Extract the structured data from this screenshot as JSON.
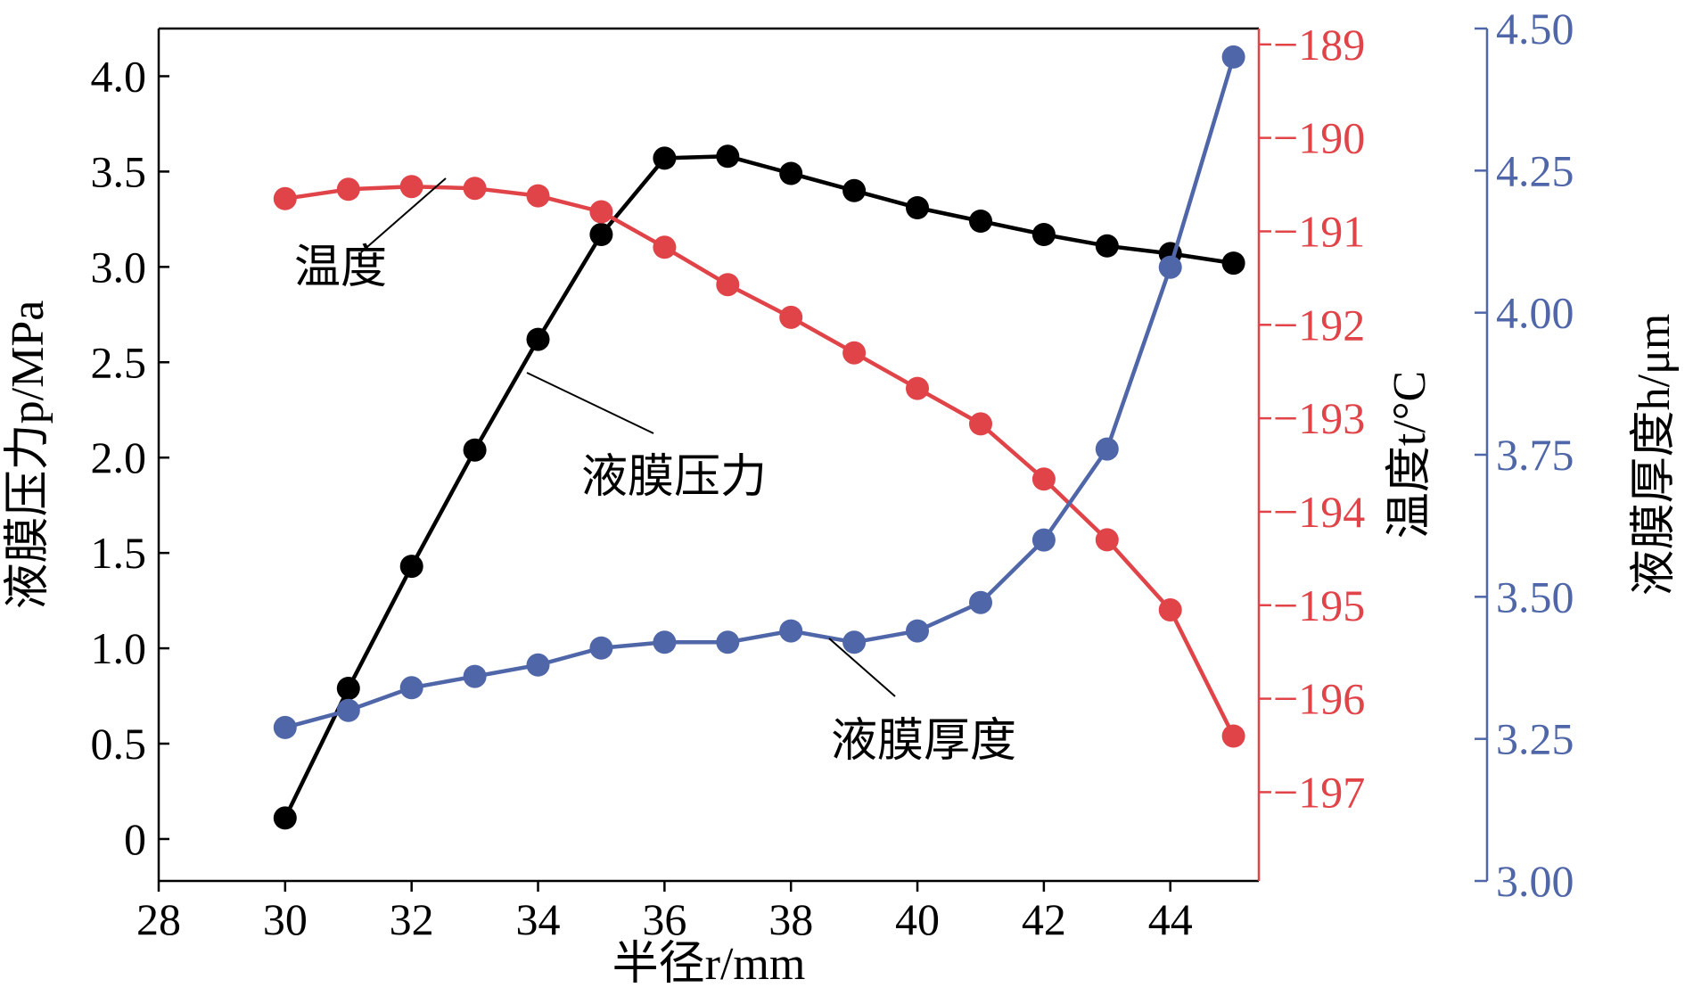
{
  "chart_data": {
    "type": "line",
    "xlabel": "半径r/mm",
    "xlim": [
      28,
      45.4
    ],
    "xticks": [
      "28",
      "30",
      "32",
      "34",
      "36",
      "38",
      "40",
      "42",
      "44"
    ],
    "xtick_values": [
      28,
      30,
      32,
      34,
      36,
      38,
      40,
      42,
      44
    ],
    "x": [
      30,
      31,
      32,
      33,
      34,
      35,
      36,
      37,
      38,
      39,
      40,
      41,
      42,
      43,
      44,
      45
    ],
    "axes": {
      "left": {
        "label": "液膜压力p/MPa",
        "ylim": [
          -0.22,
          4.25
        ],
        "tick_values": [
          0,
          0.5,
          1.0,
          1.5,
          2.0,
          2.5,
          3.0,
          3.5,
          4.0
        ],
        "ticks": [
          "0",
          "0.5",
          "1.0",
          "1.5",
          "2.0",
          "2.5",
          "3.0",
          "3.5",
          "4.0"
        ],
        "color": "#000000"
      },
      "right_temperature": {
        "label": "温度t/°C",
        "ylim": [
          -197.95,
          -188.83
        ],
        "tick_values": [
          -189,
          -190,
          -191,
          -192,
          -193,
          -194,
          -195,
          -196,
          -197
        ],
        "ticks": [
          "−189",
          "−190",
          "−191",
          "−192",
          "−193",
          "−194",
          "−195",
          "−196",
          "−197"
        ],
        "color": "#e04448"
      },
      "right_thickness": {
        "label": "液膜厚度h/μm",
        "ylim": [
          3.0,
          4.5
        ],
        "tick_values": [
          3.0,
          3.25,
          3.5,
          3.75,
          4.0,
          4.25,
          4.5
        ],
        "ticks": [
          "3.00",
          "3.25",
          "3.50",
          "3.75",
          "4.00",
          "4.25",
          "4.50"
        ],
        "color": "#4f66a8"
      }
    },
    "series": [
      {
        "name": "液膜压力",
        "axis": "left",
        "color": "#000000",
        "values": [
          0.11,
          0.79,
          1.43,
          2.04,
          2.62,
          3.17,
          3.57,
          3.58,
          3.49,
          3.4,
          3.31,
          3.24,
          3.17,
          3.11,
          3.07,
          3.02
        ]
      },
      {
        "name": "温度",
        "axis": "right_temperature",
        "color": "#e04448",
        "values": [
          -190.65,
          -190.55,
          -190.52,
          -190.54,
          -190.62,
          -190.79,
          -191.17,
          -191.57,
          -191.92,
          -192.3,
          -192.68,
          -193.06,
          -193.65,
          -194.3,
          -195.05,
          -196.4
        ]
      },
      {
        "name": "液膜厚度",
        "axis": "right_thickness",
        "color": "#4f66a8",
        "values": [
          3.27,
          3.3,
          3.34,
          3.36,
          3.38,
          3.41,
          3.42,
          3.42,
          3.44,
          3.42,
          3.44,
          3.49,
          3.6,
          3.76,
          4.08,
          4.45
        ]
      }
    ],
    "annotations": [
      {
        "text": "温度",
        "series": "温度",
        "x": 32.6
      },
      {
        "text": "液膜压力",
        "series": "液膜压力",
        "x": 33.7
      },
      {
        "text": "液膜厚度",
        "series": "液膜厚度",
        "x": 38.6
      }
    ]
  }
}
